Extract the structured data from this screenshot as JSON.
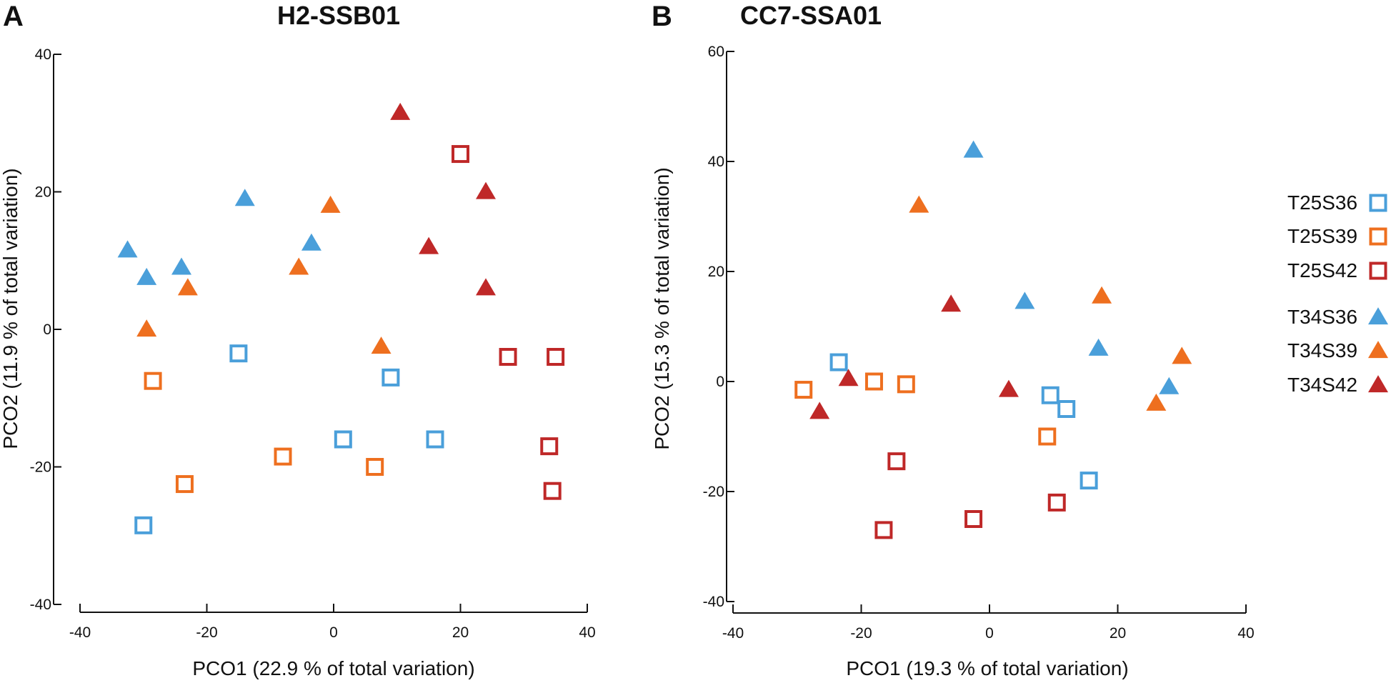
{
  "colors": {
    "S36": "#4a9fda",
    "S39": "#ee6f1f",
    "S42": "#bf2828",
    "axis": "#111111"
  },
  "legend": {
    "items": [
      {
        "label": "T25S36",
        "marker": "square",
        "group": "S36"
      },
      {
        "label": "T25S39",
        "marker": "square",
        "group": "S39"
      },
      {
        "label": "T25S42",
        "marker": "square",
        "group": "S42"
      },
      {
        "label": "T34S36",
        "marker": "triangle",
        "group": "S36"
      },
      {
        "label": "T34S39",
        "marker": "triangle",
        "group": "S39"
      },
      {
        "label": "T34S42",
        "marker": "triangle",
        "group": "S42"
      }
    ]
  },
  "chart_data": [
    {
      "type": "scatter",
      "panel": "A",
      "title": "H2-SSB01",
      "xlabel": "PCO1 (22.9 % of total variation)",
      "ylabel": "PCO2 (11.9 % of total variation)",
      "xlim": [
        -40,
        40
      ],
      "ylim": [
        -40,
        40
      ],
      "xticks": [
        -40,
        -20,
        0,
        20,
        40
      ],
      "yticks": [
        -40,
        -20,
        0,
        20,
        40
      ],
      "series": [
        {
          "name": "T25S36",
          "marker": "square",
          "group": "S36",
          "points": [
            [
              -15,
              -3.5
            ],
            [
              9,
              -7
            ],
            [
              1.5,
              -16
            ],
            [
              16,
              -16
            ],
            [
              -30,
              -28.5
            ]
          ]
        },
        {
          "name": "T25S39",
          "marker": "square",
          "group": "S39",
          "points": [
            [
              -28.5,
              -7.5
            ],
            [
              -8,
              -18.5
            ],
            [
              6.5,
              -20
            ],
            [
              -23.5,
              -22.5
            ]
          ]
        },
        {
          "name": "T25S42",
          "marker": "square",
          "group": "S42",
          "points": [
            [
              20,
              25.5
            ],
            [
              27.5,
              -4
            ],
            [
              35,
              -4
            ],
            [
              34,
              -17
            ],
            [
              34.5,
              -23.5
            ]
          ]
        },
        {
          "name": "T34S36",
          "marker": "triangle",
          "group": "S36",
          "points": [
            [
              -32.5,
              11.5
            ],
            [
              -29.5,
              7.5
            ],
            [
              -24,
              9
            ],
            [
              -14,
              19
            ],
            [
              -3.5,
              12.5
            ]
          ]
        },
        {
          "name": "T34S39",
          "marker": "triangle",
          "group": "S39",
          "points": [
            [
              -29.5,
              0
            ],
            [
              -23,
              6
            ],
            [
              -5.5,
              9
            ],
            [
              -0.5,
              18
            ],
            [
              7.5,
              -2.5
            ]
          ]
        },
        {
          "name": "T34S42",
          "marker": "triangle",
          "group": "S42",
          "points": [
            [
              10.5,
              31.5
            ],
            [
              24,
              20
            ],
            [
              15,
              12
            ],
            [
              24,
              6
            ]
          ]
        }
      ]
    },
    {
      "type": "scatter",
      "panel": "B",
      "title": "CC7-SSA01",
      "xlabel": "PCO1 (19.3 % of total variation)",
      "ylabel": "PCO2 (15.3 % of total variation)",
      "xlim": [
        -40,
        40
      ],
      "ylim": [
        -40,
        60
      ],
      "xticks": [
        -40,
        -20,
        0,
        20,
        40
      ],
      "yticks": [
        -40,
        -20,
        0,
        20,
        40,
        60
      ],
      "series": [
        {
          "name": "T25S36",
          "marker": "square",
          "group": "S36",
          "points": [
            [
              -23.5,
              3.5
            ],
            [
              9.5,
              -2.5
            ],
            [
              12,
              -5
            ],
            [
              15.5,
              -18
            ]
          ]
        },
        {
          "name": "T25S39",
          "marker": "square",
          "group": "S39",
          "points": [
            [
              -29,
              -1.5
            ],
            [
              -18,
              0
            ],
            [
              -13,
              -0.5
            ],
            [
              9,
              -10
            ]
          ]
        },
        {
          "name": "T25S42",
          "marker": "square",
          "group": "S42",
          "points": [
            [
              -14.5,
              -14.5
            ],
            [
              -16.5,
              -27
            ],
            [
              -2.5,
              -25
            ],
            [
              10.5,
              -22
            ]
          ]
        },
        {
          "name": "T34S36",
          "marker": "triangle",
          "group": "S36",
          "points": [
            [
              -2.5,
              42
            ],
            [
              5.5,
              14.5
            ],
            [
              17,
              6
            ],
            [
              28,
              -1
            ]
          ]
        },
        {
          "name": "T34S39",
          "marker": "triangle",
          "group": "S39",
          "points": [
            [
              -11,
              32
            ],
            [
              17.5,
              15.5
            ],
            [
              30,
              4.5
            ],
            [
              26,
              -4
            ]
          ]
        },
        {
          "name": "T34S42",
          "marker": "triangle",
          "group": "S42",
          "points": [
            [
              -6,
              14
            ],
            [
              -22,
              0.5
            ],
            [
              -26.5,
              -5.5
            ],
            [
              3,
              -1.5
            ]
          ]
        }
      ]
    }
  ]
}
